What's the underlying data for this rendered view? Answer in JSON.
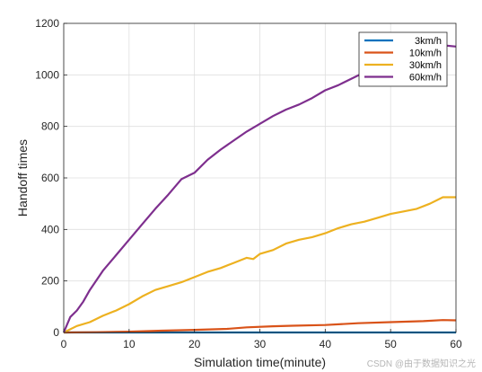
{
  "chart_data": {
    "type": "line",
    "xlabel": "Simulation time(minute)",
    "ylabel": "Handoff times",
    "xlim": [
      0,
      60
    ],
    "ylim": [
      0,
      1200
    ],
    "xticks": [
      0,
      10,
      20,
      30,
      40,
      50,
      60
    ],
    "yticks": [
      0,
      200,
      400,
      600,
      800,
      1000,
      1200
    ],
    "grid": true,
    "legend_position": "top-right",
    "series": [
      {
        "name": "3km/h",
        "color": "#0072BD",
        "x": [
          0,
          60
        ],
        "y": [
          0,
          0
        ]
      },
      {
        "name": "10km/h",
        "color": "#D95319",
        "x": [
          0,
          5,
          10,
          15,
          20,
          25,
          28,
          32,
          35,
          40,
          45,
          50,
          55,
          58,
          60
        ],
        "y": [
          0,
          1,
          3,
          7,
          10,
          14,
          20,
          24,
          26,
          29,
          36,
          40,
          44,
          48,
          47
        ]
      },
      {
        "name": "30km/h",
        "color": "#EDB120",
        "x": [
          0,
          2,
          4,
          6,
          8,
          10,
          12,
          14,
          16,
          18,
          20,
          22,
          24,
          26,
          28,
          29,
          30,
          32,
          34,
          36,
          38,
          40,
          42,
          44,
          46,
          48,
          50,
          52,
          54,
          56,
          58,
          60
        ],
        "y": [
          0,
          25,
          40,
          65,
          85,
          110,
          140,
          165,
          180,
          195,
          215,
          235,
          250,
          270,
          290,
          285,
          305,
          320,
          345,
          360,
          370,
          385,
          405,
          420,
          430,
          445,
          460,
          470,
          480,
          500,
          525,
          525
        ]
      },
      {
        "name": "60km/h",
        "color": "#7E2F8E",
        "x": [
          0,
          1,
          2,
          3,
          4,
          6,
          8,
          10,
          12,
          14,
          16,
          18,
          20,
          22,
          24,
          26,
          28,
          30,
          32,
          34,
          36,
          38,
          40,
          42,
          44,
          46,
          48,
          50,
          52,
          54,
          56,
          58,
          60
        ],
        "y": [
          0,
          60,
          85,
          120,
          165,
          240,
          300,
          360,
          420,
          480,
          535,
          595,
          620,
          670,
          710,
          745,
          780,
          810,
          840,
          865,
          885,
          910,
          940,
          960,
          985,
          1010,
          1040,
          1060,
          1070,
          1085,
          1100,
          1115,
          1110
        ]
      }
    ]
  },
  "watermark": "CSDN @由于数据知识之光"
}
